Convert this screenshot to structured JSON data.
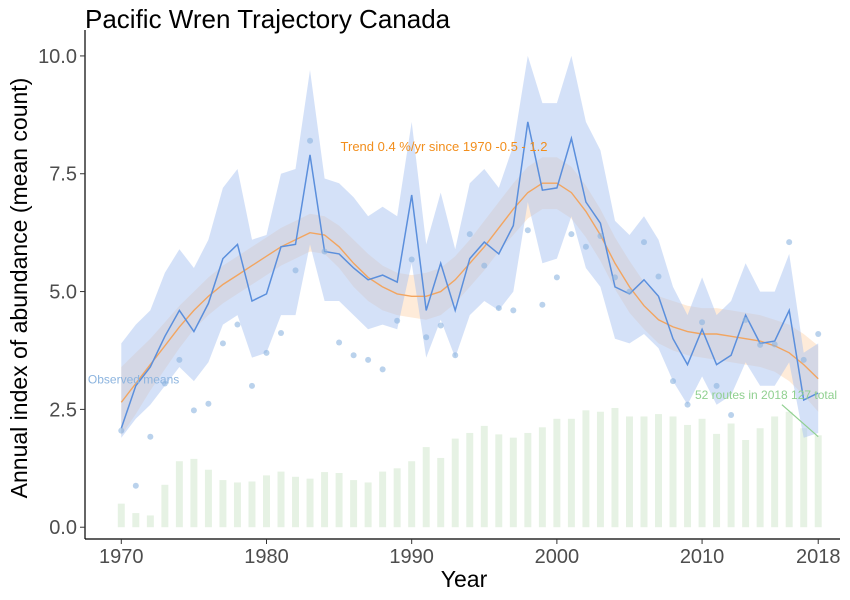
{
  "chart_data": {
    "type": "line",
    "title": "Pacific Wren Trajectory Canada",
    "xlabel": "Year",
    "ylabel": "Annual index of abundance (mean count)",
    "xlim": [
      1967.5,
      2019.5
    ],
    "ylim": [
      -0.25,
      10.55
    ],
    "x_ticks": [
      1970,
      1980,
      1990,
      2000,
      2010,
      2018
    ],
    "y_ticks": [
      0.0,
      2.5,
      5.0,
      7.5,
      10.0
    ],
    "y_tick_labels": [
      "0.0",
      "2.5",
      "5.0",
      "7.5",
      "10.0"
    ],
    "grid": false,
    "legend": "none",
    "colors": {
      "index_line": "#5b8fdc",
      "index_band": "#a9c4f2",
      "trend_line": "#f2a560",
      "trend_band": "#fde4cc",
      "observed_points": "#8cb4df",
      "route_bars": "#e6f2e4",
      "annotation_trend": "#f28e1c",
      "annotation_observed": "#8cb4df",
      "annotation_routes": "#90d090"
    },
    "years": [
      1970,
      1971,
      1972,
      1973,
      1974,
      1975,
      1976,
      1977,
      1978,
      1979,
      1980,
      1981,
      1982,
      1983,
      1984,
      1985,
      1986,
      1987,
      1988,
      1989,
      1990,
      1991,
      1992,
      1993,
      1994,
      1995,
      1996,
      1997,
      1998,
      1999,
      2000,
      2001,
      2002,
      2003,
      2004,
      2005,
      2006,
      2007,
      2008,
      2009,
      2010,
      2011,
      2012,
      2013,
      2014,
      2015,
      2016,
      2017,
      2018
    ],
    "series": [
      {
        "name": "Annual index",
        "values": [
          2.1,
          3.0,
          3.4,
          4.05,
          4.6,
          4.15,
          4.75,
          5.7,
          6.0,
          4.8,
          4.95,
          5.95,
          6.0,
          7.9,
          5.85,
          5.8,
          5.5,
          5.25,
          5.35,
          5.2,
          7.05,
          4.6,
          5.6,
          4.6,
          5.7,
          6.05,
          5.8,
          6.4,
          8.6,
          7.15,
          7.2,
          8.25,
          6.9,
          6.45,
          5.1,
          4.95,
          5.25,
          4.9,
          4.0,
          3.45,
          4.2,
          3.45,
          3.65,
          4.5,
          3.9,
          3.95,
          4.6,
          2.7,
          2.85
        ],
        "upper": [
          3.9,
          4.3,
          4.6,
          5.4,
          5.9,
          5.5,
          6.1,
          7.2,
          7.6,
          6.1,
          6.2,
          7.5,
          7.6,
          9.7,
          7.4,
          7.3,
          7.0,
          6.6,
          6.8,
          6.6,
          8.6,
          6.0,
          7.1,
          5.9,
          7.3,
          7.6,
          7.2,
          8.1,
          10.0,
          9.0,
          9.0,
          10.0,
          8.6,
          8.0,
          6.5,
          6.2,
          6.6,
          6.1,
          5.1,
          4.5,
          5.3,
          4.5,
          4.8,
          5.6,
          5.0,
          5.0,
          5.8,
          3.7,
          3.9
        ],
        "lower": [
          1.9,
          2.3,
          2.6,
          3.0,
          3.4,
          3.1,
          3.5,
          4.3,
          4.5,
          3.6,
          3.7,
          4.5,
          4.5,
          6.0,
          4.8,
          4.8,
          4.5,
          4.2,
          4.3,
          4.2,
          5.6,
          3.6,
          4.4,
          3.6,
          4.5,
          4.8,
          4.6,
          5.0,
          6.9,
          5.6,
          5.7,
          6.6,
          5.5,
          5.1,
          4.0,
          3.9,
          4.1,
          3.8,
          3.1,
          2.6,
          3.2,
          2.6,
          2.8,
          3.5,
          3.0,
          3.0,
          3.5,
          1.9,
          2.0
        ]
      },
      {
        "name": "Trend",
        "values": [
          2.65,
          3.05,
          3.45,
          3.85,
          4.25,
          4.6,
          4.9,
          5.15,
          5.35,
          5.55,
          5.75,
          5.95,
          6.1,
          6.25,
          6.2,
          5.95,
          5.6,
          5.3,
          5.1,
          4.95,
          4.9,
          4.9,
          5.0,
          5.25,
          5.6,
          5.95,
          6.35,
          6.75,
          7.1,
          7.3,
          7.3,
          7.1,
          6.7,
          6.2,
          5.6,
          5.1,
          4.7,
          4.4,
          4.25,
          4.15,
          4.1,
          4.1,
          4.05,
          4.0,
          3.95,
          3.85,
          3.7,
          3.45,
          3.15
        ],
        "upper": [
          3.4,
          3.7,
          4.0,
          4.35,
          4.7,
          5.0,
          5.3,
          5.55,
          5.75,
          5.95,
          6.15,
          6.35,
          6.5,
          6.65,
          6.6,
          6.4,
          6.1,
          5.8,
          5.55,
          5.4,
          5.35,
          5.4,
          5.5,
          5.75,
          6.1,
          6.5,
          6.9,
          7.3,
          7.65,
          7.85,
          7.85,
          7.65,
          7.25,
          6.75,
          6.15,
          5.65,
          5.2,
          4.9,
          4.8,
          4.7,
          4.65,
          4.65,
          4.6,
          4.55,
          4.5,
          4.4,
          4.3,
          4.1,
          3.85
        ],
        "lower": [
          1.95,
          2.4,
          2.9,
          3.35,
          3.8,
          4.2,
          4.5,
          4.75,
          4.95,
          5.15,
          5.35,
          5.55,
          5.7,
          5.85,
          5.8,
          5.5,
          5.1,
          4.8,
          4.6,
          4.5,
          4.45,
          4.4,
          4.5,
          4.75,
          5.1,
          5.45,
          5.85,
          6.2,
          6.55,
          6.75,
          6.75,
          6.55,
          6.15,
          5.65,
          5.05,
          4.55,
          4.2,
          3.9,
          3.75,
          3.65,
          3.6,
          3.55,
          3.5,
          3.45,
          3.4,
          3.3,
          3.1,
          2.8,
          2.45
        ]
      },
      {
        "name": "Observed means",
        "values": [
          2.05,
          0.88,
          1.92,
          3.05,
          3.55,
          2.48,
          2.62,
          3.9,
          4.3,
          3.0,
          3.7,
          4.12,
          5.45,
          8.2,
          5.85,
          3.92,
          3.65,
          3.55,
          3.35,
          4.38,
          5.68,
          4.03,
          4.28,
          3.65,
          6.22,
          5.55,
          4.65,
          4.6,
          6.3,
          4.72,
          5.3,
          6.22,
          5.95,
          6.18,
          5.3,
          5.0,
          6.05,
          5.32,
          3.1,
          2.6,
          4.35,
          3.0,
          2.38,
          4.4,
          3.87,
          3.88,
          6.05,
          3.55,
          4.1
        ]
      },
      {
        "name": "Routes",
        "values": [
          0.5,
          0.3,
          0.25,
          0.9,
          1.4,
          1.45,
          1.22,
          1.0,
          0.95,
          0.97,
          1.1,
          1.18,
          1.07,
          1.03,
          1.17,
          1.15,
          1.0,
          0.95,
          1.18,
          1.25,
          1.4,
          1.7,
          1.47,
          1.88,
          2.0,
          2.15,
          1.97,
          1.9,
          2.0,
          2.12,
          2.3,
          2.3,
          2.48,
          2.45,
          2.53,
          2.35,
          2.35,
          2.4,
          2.35,
          2.17,
          2.3,
          1.98,
          2.2,
          1.85,
          2.1,
          2.35,
          2.45,
          2.1,
          1.95
        ]
      }
    ],
    "annotations": {
      "trend": "Trend 0.4 %/yr since 1970  -0.5 - 1.2",
      "observed": "Observed means",
      "routes": "52 routes in 2018 127 total"
    }
  }
}
